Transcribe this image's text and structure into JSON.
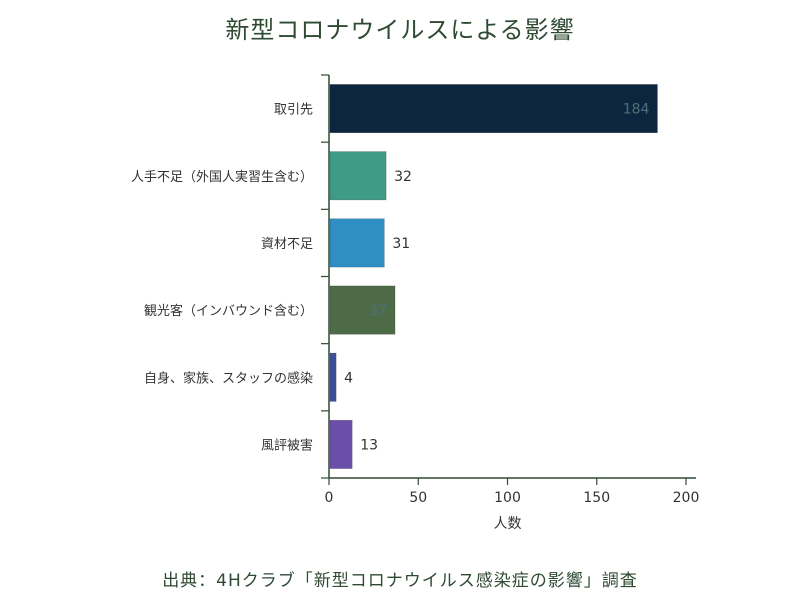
{
  "chart_data": {
    "type": "bar",
    "orientation": "horizontal",
    "title": "新型コロナウイルスによる影響",
    "categories": [
      "取引先",
      "人手不足（外国人実習生含む）",
      "資材不足",
      "観光客（インバウンド含む）",
      "自身、家族、スタッフの感染",
      "風評被害"
    ],
    "values": [
      184,
      32,
      31,
      37,
      4,
      13
    ],
    "value_labels": [
      "184",
      "32",
      "31",
      "37",
      "4",
      "13"
    ],
    "bar_colors": [
      "#0c2640",
      "#3f9a86",
      "#2f8fc4",
      "#4e6b47",
      "#3c4f9a",
      "#6a4fa8"
    ],
    "xlabel": "人数",
    "ylabel": "",
    "xlim": [
      0,
      200
    ],
    "x_ticks": [
      0,
      50,
      100,
      150,
      200
    ],
    "x_tick_labels": [
      "0",
      "50",
      "100",
      "150",
      "200"
    ],
    "grid": false,
    "legend": "none"
  },
  "source": "出典：4Hクラブ「新型コロナウイルス感染症の影響」調査"
}
